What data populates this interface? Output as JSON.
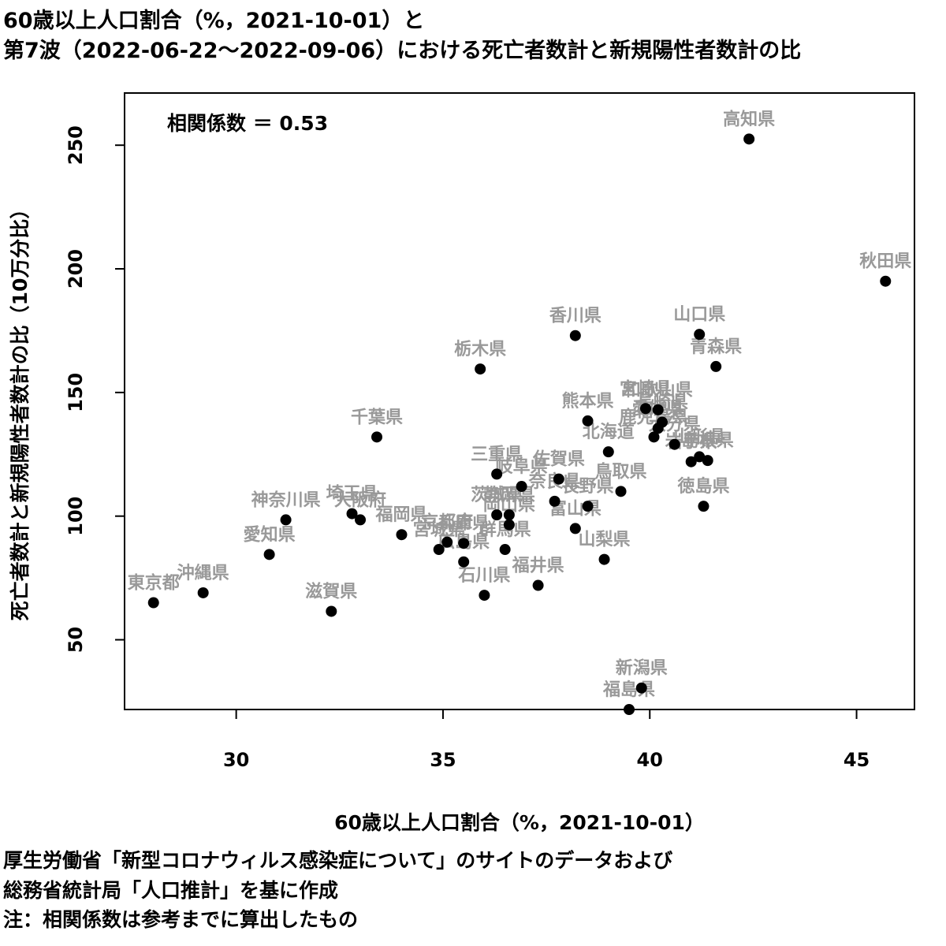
{
  "header": {
    "title_line1": "60歳以上人口割合（%，2021-10-01）と",
    "title_line2": "第7波（2022-06-22～2022-09-06）における死亡者数計と新規陽性者数計の比"
  },
  "footer": {
    "note1": "厚生労働省「新型コロナウィルス感染症について」のサイトのデータおよび",
    "note2": "総務省統計局「人口推計」を基に作成",
    "note3": "注：相関係数は参考までに算出したもの"
  },
  "chart_data": {
    "type": "scatter",
    "xlabel": "60歳以上人口割合（%，2021-10-01）",
    "ylabel": "死亡者数計と新規陽性者数計の比（10万分比）",
    "annotation": "相関係数 ＝ 0.53",
    "xlim": [
      27.3,
      46.4
    ],
    "ylim": [
      21.8,
      271.1
    ],
    "xticks": [
      30,
      35,
      40,
      45
    ],
    "yticks": [
      50,
      100,
      150,
      200,
      250
    ],
    "point_color": "#000000",
    "label_color": "#999999",
    "points": [
      {
        "name": "東京都",
        "x": 28.0,
        "y": 65.0
      },
      {
        "name": "沖縄県",
        "x": 29.2,
        "y": 69.0
      },
      {
        "name": "愛知県",
        "x": 30.8,
        "y": 84.5
      },
      {
        "name": "神奈川県",
        "x": 31.2,
        "y": 98.5
      },
      {
        "name": "滋賀県",
        "x": 32.3,
        "y": 61.5
      },
      {
        "name": "埼玉県",
        "x": 32.8,
        "y": 101.0
      },
      {
        "name": "大阪府",
        "x": 33.0,
        "y": 98.5
      },
      {
        "name": "千葉県",
        "x": 33.4,
        "y": 132.0
      },
      {
        "name": "福岡県",
        "x": 34.0,
        "y": 92.5
      },
      {
        "name": "宮城県",
        "x": 34.9,
        "y": 86.5
      },
      {
        "name": "京都府",
        "x": 35.1,
        "y": 89.5
      },
      {
        "name": "広島県",
        "x": 35.5,
        "y": 81.5
      },
      {
        "name": "兵庫県",
        "x": 35.5,
        "y": 89.0
      },
      {
        "name": "栃木県",
        "x": 35.9,
        "y": 159.5
      },
      {
        "name": "石川県",
        "x": 36.0,
        "y": 68.0
      },
      {
        "name": "三重県",
        "x": 36.3,
        "y": 117.0
      },
      {
        "name": "茨城県",
        "x": 36.3,
        "y": 100.5
      },
      {
        "name": "群馬県",
        "x": 36.5,
        "y": 86.5
      },
      {
        "name": "岡山県",
        "x": 36.6,
        "y": 96.5
      },
      {
        "name": "静岡県",
        "x": 36.6,
        "y": 100.5
      },
      {
        "name": "岐阜県",
        "x": 36.9,
        "y": 112.0
      },
      {
        "name": "福井県",
        "x": 37.3,
        "y": 72.0
      },
      {
        "name": "奈良県",
        "x": 37.7,
        "y": 106.0
      },
      {
        "name": "佐賀県",
        "x": 37.8,
        "y": 115.0
      },
      {
        "name": "富山県",
        "x": 38.2,
        "y": 95.0
      },
      {
        "name": "香川県",
        "x": 38.2,
        "y": 173.0
      },
      {
        "name": "熊本県",
        "x": 38.5,
        "y": 138.5
      },
      {
        "name": "長野県",
        "x": 38.5,
        "y": 104.0
      },
      {
        "name": "山梨県",
        "x": 38.9,
        "y": 82.5
      },
      {
        "name": "北海道",
        "x": 39.0,
        "y": 126.0
      },
      {
        "name": "鳥取県",
        "x": 39.3,
        "y": 110.0
      },
      {
        "name": "福島県",
        "x": 39.5,
        "y": 21.8
      },
      {
        "name": "新潟県",
        "x": 39.8,
        "y": 30.5
      },
      {
        "name": "宮崎県",
        "x": 39.9,
        "y": 143.5
      },
      {
        "name": "鹿児島県",
        "x": 40.1,
        "y": 132.0
      },
      {
        "name": "和歌山県",
        "x": 40.2,
        "y": 143.0
      },
      {
        "name": "愛媛県",
        "x": 40.2,
        "y": 135.5
      },
      {
        "name": "長崎県",
        "x": 40.3,
        "y": 138.0
      },
      {
        "name": "大分県",
        "x": 40.6,
        "y": 129.0
      },
      {
        "name": "岩手県",
        "x": 41.0,
        "y": 122.0
      },
      {
        "name": "山形県",
        "x": 41.2,
        "y": 124.0
      },
      {
        "name": "山口県",
        "x": 41.2,
        "y": 173.5
      },
      {
        "name": "徳島県",
        "x": 41.3,
        "y": 104.0
      },
      {
        "name": "島根県",
        "x": 41.4,
        "y": 122.5
      },
      {
        "name": "青森県",
        "x": 41.6,
        "y": 160.5
      },
      {
        "name": "高知県",
        "x": 42.4,
        "y": 252.5
      },
      {
        "name": "秋田県",
        "x": 45.7,
        "y": 195.0
      }
    ]
  }
}
